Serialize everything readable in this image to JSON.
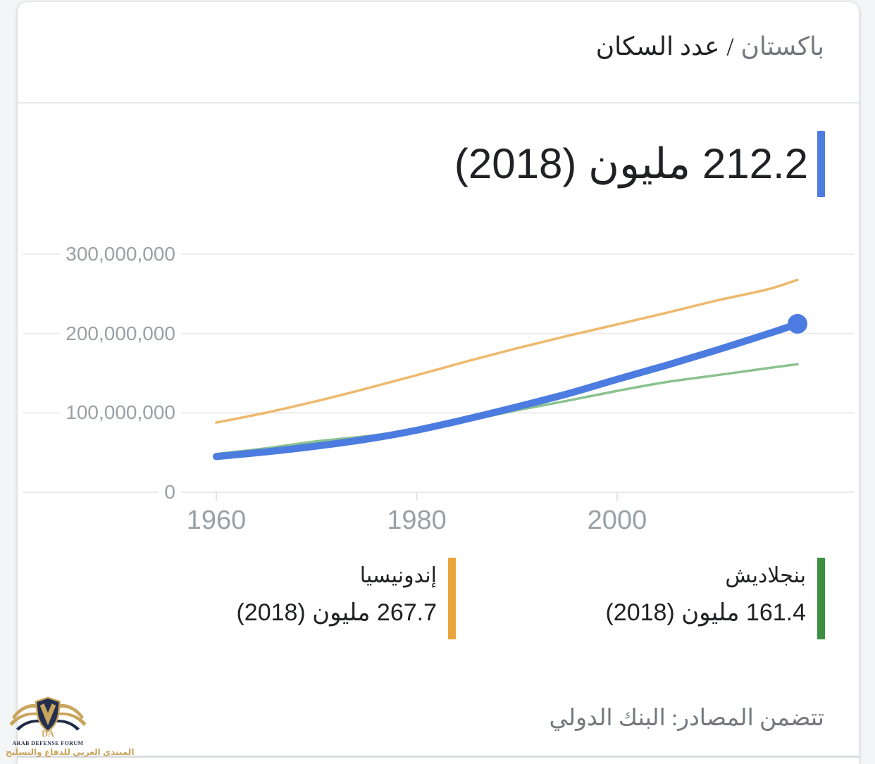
{
  "header": {
    "entity": "باكستان",
    "separator": "/",
    "metric": "عدد السكان"
  },
  "stat": {
    "display": "212.2 مليون (2018)",
    "value": "212.2",
    "unit": "مليون",
    "year": "2018",
    "accent_color": "#4c7ce0"
  },
  "chart_data": {
    "type": "line",
    "title": "عدد السكان",
    "x": [
      1960,
      1965,
      1970,
      1975,
      1980,
      1985,
      1990,
      1995,
      2000,
      2005,
      2010,
      2015,
      2018
    ],
    "series": [
      {
        "name": "باكستان",
        "slug": "pakistan",
        "color": "#4c7ce0",
        "line_width": 10,
        "z": 3,
        "end_dot": true,
        "end_label": "212.2 مليون (2018)",
        "values_millions": [
          44.9,
          50.9,
          58.1,
          66.8,
          78.1,
          92.2,
          107.6,
          123.8,
          142.3,
          160.3,
          179.4,
          199.4,
          212.2
        ]
      },
      {
        "name": "إندونيسيا",
        "slug": "indonesia",
        "color": "#eeb96e",
        "line_width": 3.5,
        "z": 2,
        "end_dot": false,
        "end_label": "267.7 مليون (2018)",
        "values_millions": [
          87.8,
          100.3,
          114.8,
          130.7,
          147.5,
          164.9,
          181.4,
          196.9,
          211.5,
          226.3,
          241.8,
          255.6,
          267.7
        ]
      },
      {
        "name": "بنجلاديش",
        "slug": "bangladesh",
        "color": "#8ac28f",
        "line_width": 3.5,
        "z": 1,
        "end_dot": false,
        "end_label": "161.4 مليون (2018)",
        "values_millions": [
          48.2,
          55.4,
          64.2,
          70.6,
          79.6,
          90.1,
          103.2,
          115.2,
          127.7,
          139.0,
          147.6,
          156.3,
          161.4
        ]
      }
    ],
    "y_axis": {
      "range": [
        0,
        300000000
      ],
      "ticks": [
        {
          "value": 300000000,
          "label": "300,000,000"
        },
        {
          "value": 200000000,
          "label": "200,000,000"
        },
        {
          "value": 100000000,
          "label": "100,000,000"
        },
        {
          "value": 0,
          "label": "0"
        }
      ]
    },
    "x_axis": {
      "range": [
        1960,
        2018
      ],
      "ticks": [
        1960,
        1980,
        2000
      ]
    },
    "grid": true,
    "legend_position": "bottom"
  },
  "legend": {
    "items": [
      {
        "name": "بنجلاديش",
        "value_display": "161.4 مليون (2018)",
        "color": "#3e8e42"
      },
      {
        "name": "إندونيسيا",
        "value_display": "267.7 مليون (2018)",
        "color": "#e9a43c"
      }
    ]
  },
  "source": {
    "text": "تتضمن المصادر: البنك الدولي"
  },
  "watermark": {
    "monogram": "DA",
    "line_en": "ARAB DEFENSE FORUM",
    "line_ar": "المنتدى العربي للدفاع والتسليح",
    "gold": "#c9a45c",
    "navy": "#1f2b47"
  },
  "theme": {
    "grid_color": "#ebebeb",
    "tick_color": "#e2e2e2",
    "axis_label_color": "#9aa0a6",
    "text_dark": "#202124",
    "text_gray": "#74787d",
    "page_bg": "#f4f5f6",
    "card_bg": "#ffffff"
  }
}
